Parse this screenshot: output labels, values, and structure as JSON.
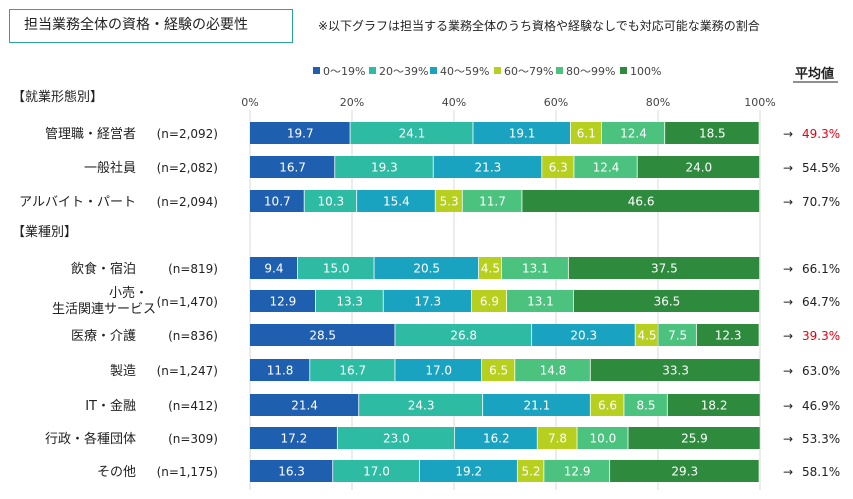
{
  "title": "担当業務全体の資格・経験の必要性",
  "note": "※以下グラフは担当する業務全体のうち資格や経験なしでも対応可能な業務の割合",
  "chart_data": {
    "type": "bar",
    "orientation": "horizontal",
    "stacked": true,
    "xlim": [
      0,
      100
    ],
    "x_ticks": [
      "0%",
      "20%",
      "40%",
      "60%",
      "80%",
      "100%"
    ],
    "legend": [
      "0〜19%",
      "20〜39%",
      "40〜59%",
      "60〜79%",
      "80〜99%",
      "100%"
    ],
    "colors": [
      "#1f5fb0",
      "#2dbba3",
      "#1aa3c0",
      "#b7cf1e",
      "#4cc27f",
      "#2e8b3e"
    ],
    "avg_header": "平均値",
    "arrow": "→",
    "sections": [
      {
        "label": "【就業形態別】",
        "rows": [
          {
            "label": "管理職・経営者",
            "n": "(n=2,092)",
            "values": [
              19.7,
              24.1,
              19.1,
              6.1,
              12.4,
              18.5
            ],
            "avg": "49.3%",
            "highlight": true
          },
          {
            "label": "一般社員",
            "n": "(n=2,082)",
            "values": [
              16.7,
              19.3,
              21.3,
              6.3,
              12.4,
              24.0
            ],
            "avg": "54.5%",
            "highlight": false
          },
          {
            "label": "アルバイト・パート",
            "n": "(n=2,094)",
            "values": [
              10.7,
              10.3,
              15.4,
              5.3,
              11.7,
              46.6
            ],
            "avg": "70.7%",
            "highlight": false
          }
        ]
      },
      {
        "label": "【業種別】",
        "rows": [
          {
            "label": "飲食・宿泊",
            "n": "(n=819)",
            "values": [
              9.4,
              15.0,
              20.5,
              4.5,
              13.1,
              37.5
            ],
            "avg": "66.1%",
            "highlight": false
          },
          {
            "label": "小売・\n生活関連サービス",
            "n": "(n=1,470)",
            "values": [
              12.9,
              13.3,
              17.3,
              6.9,
              13.1,
              36.5
            ],
            "avg": "64.7%",
            "highlight": false
          },
          {
            "label": "医療・介護",
            "n": "(n=836)",
            "values": [
              28.5,
              26.8,
              20.3,
              4.5,
              7.5,
              12.3
            ],
            "avg": "39.3%",
            "highlight": true
          },
          {
            "label": "製造",
            "n": "(n=1,247)",
            "values": [
              11.8,
              16.7,
              17.0,
              6.5,
              14.8,
              33.3
            ],
            "avg": "63.0%",
            "highlight": false
          },
          {
            "label": "IT・金融",
            "n": "(n=412)",
            "values": [
              21.4,
              24.3,
              21.1,
              6.6,
              8.5,
              18.2
            ],
            "avg": "46.9%",
            "highlight": false
          },
          {
            "label": "行政・各種団体",
            "n": "(n=309)",
            "values": [
              17.2,
              23.0,
              16.2,
              7.8,
              10.0,
              25.9
            ],
            "avg": "53.3%",
            "highlight": false
          },
          {
            "label": "その他",
            "n": "(n=1,175)",
            "values": [
              16.3,
              17.0,
              19.2,
              5.2,
              12.9,
              29.3
            ],
            "avg": "58.1%",
            "highlight": false
          }
        ]
      }
    ]
  }
}
